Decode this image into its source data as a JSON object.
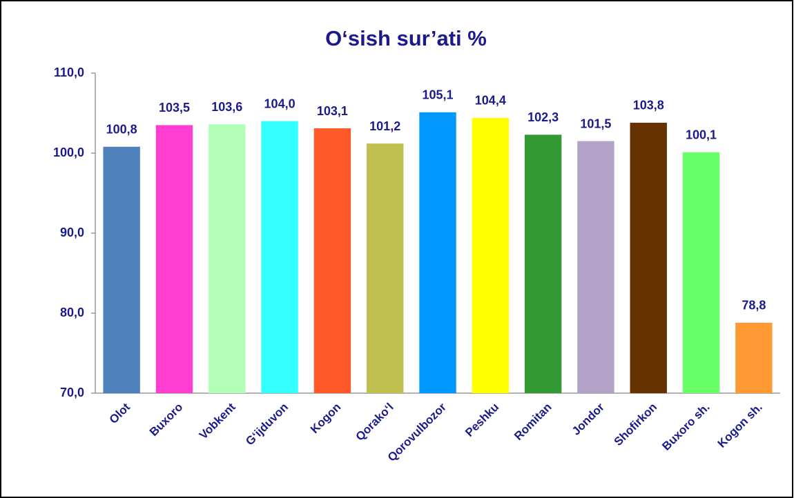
{
  "chart_data": {
    "type": "bar",
    "title": "O‘sish sur’ati %",
    "categories": [
      "Olot",
      "Buxoro",
      "Vobkent",
      "G‘ijduvon",
      "Kogon",
      "Qorako‘l",
      "Qorovulbozor",
      "Peshku",
      "Romitan",
      "Jondor",
      "Shofirkon",
      "Buxoro sh.",
      "Kogon sh."
    ],
    "values": [
      100.8,
      103.5,
      103.6,
      104.0,
      103.1,
      101.2,
      105.1,
      104.4,
      102.3,
      101.5,
      103.8,
      100.1,
      78.8
    ],
    "value_labels": [
      "100,8",
      "103,5",
      "103,6",
      "104,0",
      "103,1",
      "101,2",
      "105,1",
      "104,4",
      "102,3",
      "101,5",
      "103,8",
      "100,1",
      "78,8"
    ],
    "colors": [
      "#4f81bd",
      "#ff3dd1",
      "#b3ffb8",
      "#33ffff",
      "#ff5a28",
      "#bfc050",
      "#0099ff",
      "#ffff00",
      "#339933",
      "#b3a2c7",
      "#663300",
      "#66ff66",
      "#ff9933"
    ],
    "ylim": [
      70,
      110
    ],
    "yticks": [
      {
        "value": 70,
        "label": "70,0"
      },
      {
        "value": 80,
        "label": "80,0"
      },
      {
        "value": 90,
        "label": "90,0"
      },
      {
        "value": 100,
        "label": "100,0"
      },
      {
        "value": 110,
        "label": "110,0"
      }
    ],
    "grid": false
  }
}
